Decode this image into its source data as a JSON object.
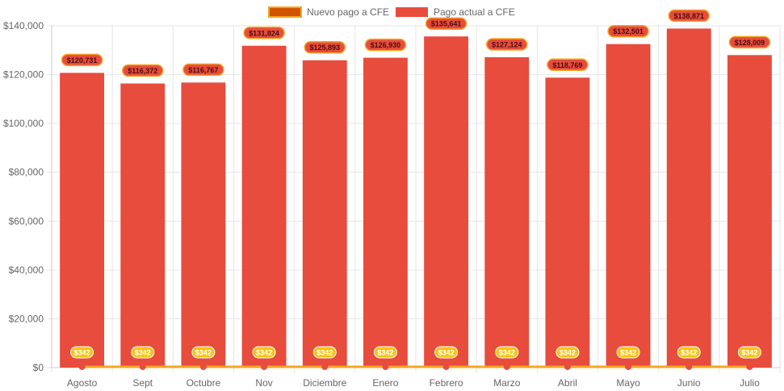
{
  "chart_data": {
    "type": "bar",
    "title": "",
    "xlabel": "",
    "ylabel": "",
    "categories": [
      "Agosto",
      "Sept",
      "Octubre",
      "Nov",
      "Diciembre",
      "Enero",
      "Febrero",
      "Marzo",
      "Abril",
      "Mayo",
      "Junio",
      "Julio"
    ],
    "ylim": [
      0,
      140000
    ],
    "yticks": [
      0,
      20000,
      40000,
      60000,
      80000,
      100000,
      120000,
      140000
    ],
    "ytick_labels": [
      "$0",
      "$20,000",
      "$40,000",
      "$60,000",
      "$80,000",
      "$100,000",
      "$120,000",
      "$140,000"
    ],
    "grid": true,
    "legend_position": "top-center",
    "series": [
      {
        "name": "Nuevo pago a CFE",
        "kind": "line",
        "color": "#f5a623",
        "marker_color": "#e74c3c",
        "values": [
          342,
          342,
          342,
          342,
          342,
          342,
          342,
          342,
          342,
          342,
          342,
          342
        ],
        "labels": [
          "$342",
          "$342",
          "$342",
          "$342",
          "$342",
          "$342",
          "$342",
          "$342",
          "$342",
          "$342",
          "$342",
          "$342"
        ]
      },
      {
        "name": "Pago actual a CFE",
        "kind": "bar",
        "color": "#e74c3c",
        "values": [
          120731,
          116372,
          116767,
          131824,
          125893,
          126930,
          135641,
          127124,
          118769,
          132501,
          138871,
          128009
        ],
        "labels": [
          "$120,731",
          "$116,372",
          "$116,767",
          "$131,824",
          "$125,893",
          "$126,930",
          "$135,641",
          "$127,124",
          "$118,769",
          "$132,501",
          "$138,871",
          "$128,009"
        ]
      }
    ]
  }
}
